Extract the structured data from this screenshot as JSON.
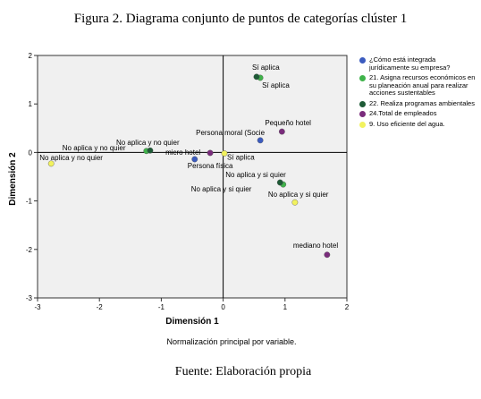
{
  "chart_data": {
    "type": "scatter",
    "title": "Figura 2. Diagrama conjunto de puntos de categorías clúster 1",
    "x_label": "Dimensión 1",
    "y_label": "Dimensión 2",
    "note": "Normalización principal por variable.",
    "source": "Fuente: Elaboración propia",
    "xlim": [
      -3,
      2
    ],
    "ylim": [
      -3,
      2
    ],
    "xticks": [
      -3,
      -2,
      -1,
      0,
      1,
      2
    ],
    "yticks": [
      -3,
      -2,
      -1,
      0,
      1,
      2
    ],
    "series": [
      {
        "name": "¿Cómo está integrada jurídicamente su empresa?",
        "color": "#3b5bbf",
        "x": [
          0.6,
          -0.46
        ],
        "values": [
          0.25,
          -0.14
        ],
        "labels": [
          "Persona moral (Socie",
          "Persona física"
        ]
      },
      {
        "name": "21. Asigna recursos económicos en su planeación anual para realizar acciones sustentables",
        "color": "#3fb34a",
        "x": [
          0.6,
          -1.24,
          0.97
        ],
        "values": [
          1.54,
          0.03,
          -0.66
        ],
        "labels": [
          "Sí aplica",
          "No aplica y no quier",
          "No aplica y si quier"
        ]
      },
      {
        "name": "22. Realiza programas ambientales",
        "color": "#1d5a36",
        "x": [
          0.54,
          -1.18,
          0.92
        ],
        "values": [
          1.56,
          0.04,
          -0.62
        ],
        "labels": [
          "Sí aplica",
          "No aplica y no quier",
          "No aplica y si quier"
        ]
      },
      {
        "name": "24.Total de empleados",
        "color": "#7a2c7c",
        "x": [
          0.95,
          -0.21,
          1.68
        ],
        "values": [
          0.43,
          -0.01,
          -2.11
        ],
        "labels": [
          "Pequeño hotel",
          "micro hotel",
          "mediano hotel"
        ]
      },
      {
        "name": "9. Uso eficiente del agua.",
        "color": "#f2f25e",
        "x": [
          0.02,
          -2.78,
          1.16
        ],
        "values": [
          -0.02,
          -0.23,
          -1.03
        ],
        "labels": [
          "Sí aplica",
          "No aplica y no quier",
          "No aplica y si quier"
        ]
      }
    ]
  }
}
